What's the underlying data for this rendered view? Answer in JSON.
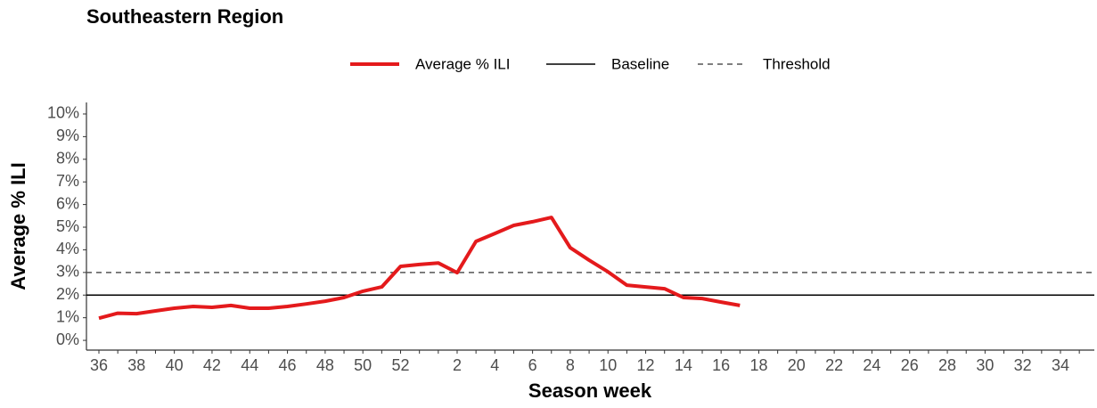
{
  "chart_data": {
    "type": "line",
    "title": "Southeastern Region",
    "x_label": "Season week",
    "y_label": "Average % ILI",
    "categories": [
      "36",
      null,
      "38",
      null,
      "40",
      null,
      "42",
      null,
      "44",
      null,
      "46",
      null,
      "48",
      null,
      "50",
      null,
      "52",
      null,
      null,
      "2",
      null,
      "4",
      null,
      "6",
      null,
      "8",
      null,
      "10",
      null,
      "12",
      null,
      "14",
      null,
      "16",
      null,
      "18",
      null,
      "20",
      null,
      "22",
      null,
      "24",
      null,
      "26",
      null,
      "28",
      null,
      "30",
      null,
      "32",
      null,
      "34",
      null
    ],
    "series": [
      {
        "name": "Average % ILI",
        "color": "#e41a1c",
        "values": [
          0.98,
          1.2,
          1.18,
          1.3,
          1.42,
          1.5,
          1.46,
          1.54,
          1.42,
          1.42,
          1.5,
          1.61,
          1.73,
          1.89,
          2.17,
          2.36,
          3.27,
          3.35,
          3.42,
          2.99,
          4.37,
          4.72,
          5.08,
          5.24,
          5.43,
          4.09,
          3.54,
          3.03,
          2.44,
          2.36,
          2.28,
          1.89,
          1.85,
          1.69,
          1.54,
          null,
          null,
          null,
          null,
          null,
          null,
          null,
          null,
          null,
          null,
          null,
          null,
          null,
          null,
          null,
          null,
          null,
          null
        ]
      }
    ],
    "baseline": {
      "name": "Baseline",
      "value": 2,
      "color": "#000000"
    },
    "threshold": {
      "name": "Threshold",
      "value": 3,
      "color": "#555555"
    },
    "ylim": [
      -0.43,
      10.51
    ],
    "yticks": [
      {
        "value": 0,
        "label": "0%"
      },
      {
        "value": 1,
        "label": "1%"
      },
      {
        "value": 2,
        "label": "2%"
      },
      {
        "value": 3,
        "label": "3%"
      },
      {
        "value": 4,
        "label": "4%"
      },
      {
        "value": 5,
        "label": "5%"
      },
      {
        "value": 6,
        "label": "6%"
      },
      {
        "value": 7,
        "label": "7%"
      },
      {
        "value": 8,
        "label": "8%"
      },
      {
        "value": 9,
        "label": "9%"
      },
      {
        "value": 10,
        "label": "10%"
      }
    ],
    "grid": false
  }
}
